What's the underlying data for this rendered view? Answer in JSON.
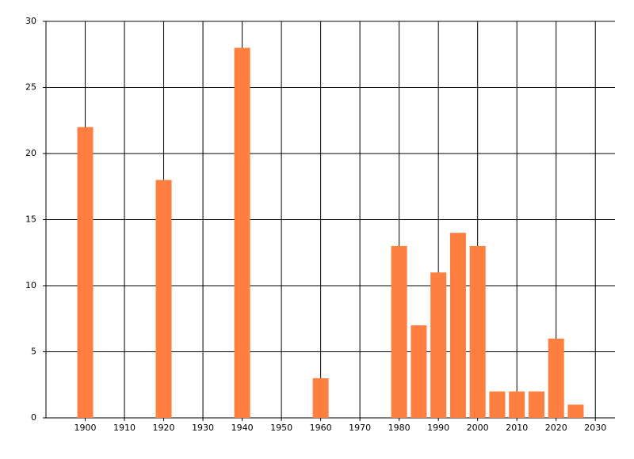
{
  "chart_data": {
    "type": "bar",
    "x": [
      1900,
      1920,
      1940,
      1960,
      1980,
      1985,
      1990,
      1995,
      2000,
      2005,
      2010,
      2015,
      2020,
      2025
    ],
    "values": [
      22,
      18,
      28,
      3,
      13,
      7,
      11,
      14,
      13,
      2,
      2,
      2,
      6,
      1
    ],
    "color": "#ff7f40",
    "xlim": [
      1890,
      2035
    ],
    "xticks": [
      1900,
      1910,
      1920,
      1930,
      1940,
      1950,
      1960,
      1970,
      1980,
      1990,
      2000,
      2010,
      2020,
      2030
    ],
    "ylim": [
      0,
      30
    ],
    "yticks": [
      0,
      5,
      10,
      15,
      20,
      25,
      30
    ],
    "grid": true
  }
}
